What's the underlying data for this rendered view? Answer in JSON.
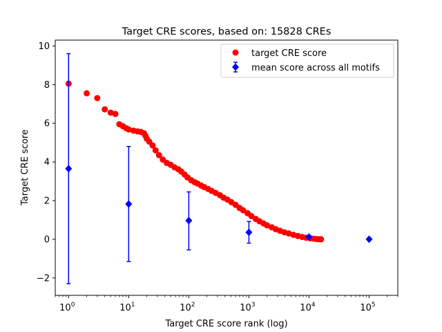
{
  "chart_data": {
    "type": "scatter",
    "title": "Target CRE scores, based on: 15828 CREs",
    "xlabel": "Target CRE score rank (log)",
    "ylabel": "Target CRE score",
    "x_scale": "log",
    "xlim": [
      0.6,
      300000
    ],
    "ylim": [
      -2.9,
      10.3
    ],
    "grid": false,
    "legend_placement": "top-right",
    "x_ticks": [
      {
        "value": 1,
        "base": "10",
        "exp": "0"
      },
      {
        "value": 10,
        "base": "10",
        "exp": "1"
      },
      {
        "value": 100,
        "base": "10",
        "exp": "2"
      },
      {
        "value": 1000,
        "base": "10",
        "exp": "3"
      },
      {
        "value": 10000,
        "base": "10",
        "exp": "4"
      },
      {
        "value": 100000,
        "base": "10",
        "exp": "5"
      }
    ],
    "y_ticks": [
      {
        "value": -2,
        "label": "−2"
      },
      {
        "value": 0,
        "label": "0"
      },
      {
        "value": 2,
        "label": "2"
      },
      {
        "value": 4,
        "label": "4"
      },
      {
        "value": 6,
        "label": "6"
      },
      {
        "value": 8,
        "label": "8"
      },
      {
        "value": 10,
        "label": "10"
      }
    ],
    "series": [
      {
        "name": "target CRE score",
        "kind": "points",
        "color": "#ff0000",
        "marker": "circle",
        "points": [
          [
            1,
            8.05
          ],
          [
            2,
            7.55
          ],
          [
            3,
            7.3
          ],
          [
            4,
            6.72
          ],
          [
            5,
            6.55
          ],
          [
            6,
            6.48
          ],
          [
            7,
            5.95
          ],
          [
            8,
            5.85
          ],
          [
            9,
            5.75
          ],
          [
            10,
            5.68
          ],
          [
            12,
            5.62
          ],
          [
            14,
            5.58
          ],
          [
            16,
            5.55
          ],
          [
            18,
            5.48
          ],
          [
            19,
            5.35
          ],
          [
            20,
            5.2
          ],
          [
            22,
            5.05
          ],
          [
            25,
            4.85
          ],
          [
            28,
            4.6
          ],
          [
            32,
            4.35
          ],
          [
            37,
            4.12
          ],
          [
            43,
            3.95
          ],
          [
            50,
            3.85
          ],
          [
            58,
            3.72
          ],
          [
            67,
            3.62
          ],
          [
            75,
            3.5
          ],
          [
            85,
            3.35
          ],
          [
            95,
            3.2
          ],
          [
            110,
            3.05
          ],
          [
            125,
            2.95
          ],
          [
            140,
            2.88
          ],
          [
            160,
            2.78
          ],
          [
            180,
            2.7
          ],
          [
            210,
            2.6
          ],
          [
            240,
            2.5
          ],
          [
            280,
            2.4
          ],
          [
            330,
            2.28
          ],
          [
            380,
            2.15
          ],
          [
            440,
            2.05
          ],
          [
            510,
            1.92
          ],
          [
            600,
            1.78
          ],
          [
            700,
            1.62
          ],
          [
            800,
            1.5
          ],
          [
            950,
            1.35
          ],
          [
            1100,
            1.2
          ],
          [
            1300,
            1.05
          ],
          [
            1500,
            0.93
          ],
          [
            1750,
            0.82
          ],
          [
            2000,
            0.72
          ],
          [
            2400,
            0.62
          ],
          [
            2800,
            0.52
          ],
          [
            3300,
            0.44
          ],
          [
            3900,
            0.36
          ],
          [
            4600,
            0.3
          ],
          [
            5500,
            0.23
          ],
          [
            6500,
            0.17
          ],
          [
            7700,
            0.12
          ],
          [
            9000,
            0.08
          ],
          [
            10500,
            0.05
          ],
          [
            12000,
            0.03
          ],
          [
            13500,
            0.01
          ],
          [
            14800,
            0.0
          ],
          [
            15828,
            0.0
          ]
        ]
      },
      {
        "name": "mean score across all motifs",
        "kind": "errorbar",
        "color": "#0000ff",
        "marker": "diamond",
        "points": [
          {
            "x": 1,
            "y": 3.65,
            "lo": -2.3,
            "hi": 9.6
          },
          {
            "x": 10,
            "y": 1.82,
            "lo": -1.15,
            "hi": 4.8
          },
          {
            "x": 100,
            "y": 0.97,
            "lo": -0.55,
            "hi": 2.45
          },
          {
            "x": 1000,
            "y": 0.36,
            "lo": -0.2,
            "hi": 0.92
          },
          {
            "x": 10000,
            "y": 0.12,
            "lo": 0.07,
            "hi": 0.17
          },
          {
            "x": 100000,
            "y": 0.0,
            "lo": 0.0,
            "hi": 0.0
          }
        ]
      }
    ]
  }
}
